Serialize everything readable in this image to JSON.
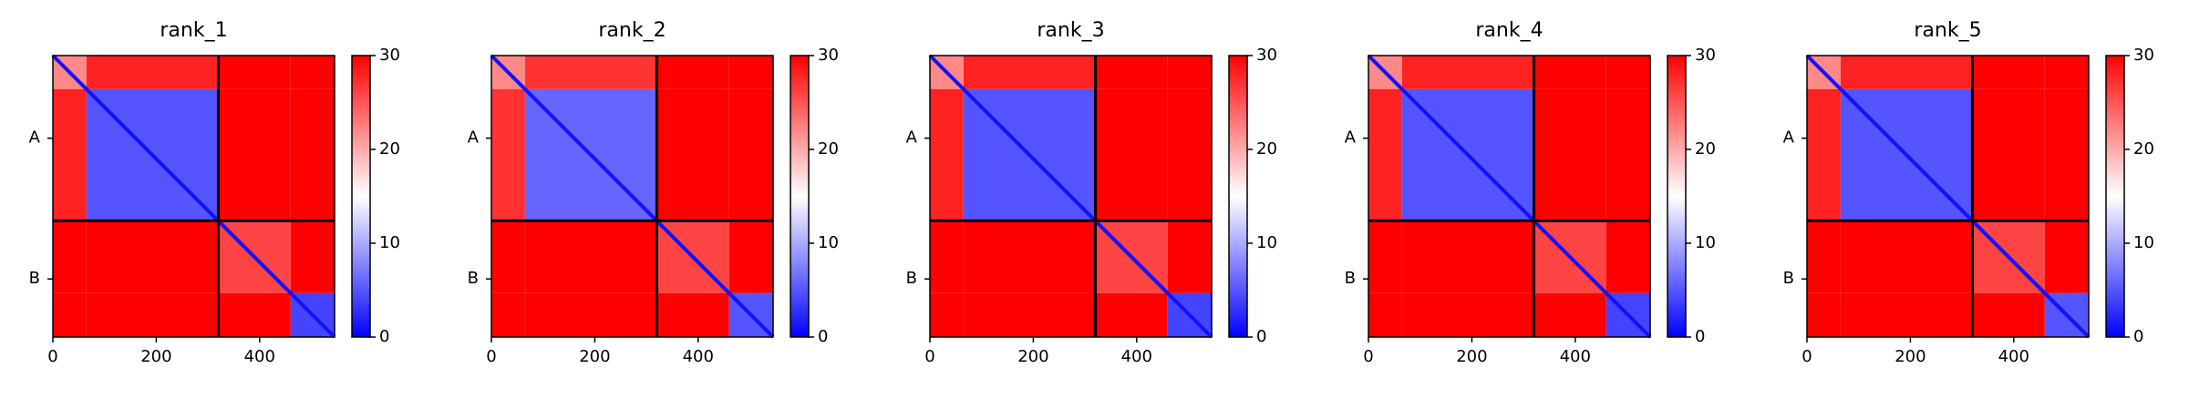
{
  "chart_data": [
    {
      "type": "heatmap",
      "title": "rank_1",
      "x_edges": [
        0,
        65,
        320,
        460,
        545
      ],
      "z": [
        [
          22,
          28,
          30,
          30
        ],
        [
          28,
          5,
          30,
          30
        ],
        [
          30,
          30,
          26,
          30
        ],
        [
          30,
          30,
          30,
          4
        ]
      ],
      "diagonal_value": 1,
      "chains": [
        {
          "label": "A",
          "start": 0,
          "end": 320
        },
        {
          "label": "B",
          "start": 320,
          "end": 545
        }
      ],
      "xlim": [
        0,
        545
      ],
      "ylim": [
        545,
        0
      ],
      "xticks": [
        0,
        200,
        400
      ],
      "clim": [
        0,
        30
      ],
      "cticks": [
        0,
        10,
        20,
        30
      ],
      "colormap": [
        "#0000ff",
        "#ffffff",
        "#ff0000"
      ]
    },
    {
      "type": "heatmap",
      "title": "rank_2",
      "x_edges": [
        0,
        65,
        320,
        460,
        545
      ],
      "z": [
        [
          22,
          27,
          30,
          30
        ],
        [
          27,
          6,
          30,
          30
        ],
        [
          30,
          30,
          26,
          30
        ],
        [
          30,
          30,
          30,
          5
        ]
      ],
      "diagonal_value": 1,
      "chains": [
        {
          "label": "A",
          "start": 0,
          "end": 320
        },
        {
          "label": "B",
          "start": 320,
          "end": 545
        }
      ],
      "xlim": [
        0,
        545
      ],
      "ylim": [
        545,
        0
      ],
      "xticks": [
        0,
        200,
        400
      ],
      "clim": [
        0,
        30
      ],
      "cticks": [
        0,
        10,
        20,
        30
      ],
      "colormap": [
        "#0000ff",
        "#ffffff",
        "#ff0000"
      ]
    },
    {
      "type": "heatmap",
      "title": "rank_3",
      "x_edges": [
        0,
        65,
        320,
        460,
        545
      ],
      "z": [
        [
          22,
          28,
          30,
          30
        ],
        [
          28,
          5,
          30,
          30
        ],
        [
          30,
          30,
          26,
          30
        ],
        [
          30,
          30,
          30,
          4
        ]
      ],
      "diagonal_value": 1,
      "chains": [
        {
          "label": "A",
          "start": 0,
          "end": 320
        },
        {
          "label": "B",
          "start": 320,
          "end": 545
        }
      ],
      "xlim": [
        0,
        545
      ],
      "ylim": [
        545,
        0
      ],
      "xticks": [
        0,
        200,
        400
      ],
      "clim": [
        0,
        30
      ],
      "cticks": [
        0,
        10,
        20,
        30
      ],
      "colormap": [
        "#0000ff",
        "#ffffff",
        "#ff0000"
      ]
    },
    {
      "type": "heatmap",
      "title": "rank_4",
      "x_edges": [
        0,
        65,
        320,
        460,
        545
      ],
      "z": [
        [
          22,
          28,
          30,
          30
        ],
        [
          28,
          5,
          30,
          30
        ],
        [
          30,
          30,
          26,
          30
        ],
        [
          30,
          30,
          30,
          4
        ]
      ],
      "diagonal_value": 1,
      "chains": [
        {
          "label": "A",
          "start": 0,
          "end": 320
        },
        {
          "label": "B",
          "start": 320,
          "end": 545
        }
      ],
      "xlim": [
        0,
        545
      ],
      "ylim": [
        545,
        0
      ],
      "xticks": [
        0,
        200,
        400
      ],
      "clim": [
        0,
        30
      ],
      "cticks": [
        0,
        10,
        20,
        30
      ],
      "colormap": [
        "#0000ff",
        "#ffffff",
        "#ff0000"
      ]
    },
    {
      "type": "heatmap",
      "title": "rank_5",
      "x_edges": [
        0,
        65,
        320,
        460,
        545
      ],
      "z": [
        [
          22,
          28,
          30,
          30
        ],
        [
          28,
          5,
          30,
          30
        ],
        [
          30,
          30,
          26,
          30
        ],
        [
          30,
          30,
          30,
          5
        ]
      ],
      "diagonal_value": 1,
      "chains": [
        {
          "label": "A",
          "start": 0,
          "end": 320
        },
        {
          "label": "B",
          "start": 320,
          "end": 545
        }
      ],
      "xlim": [
        0,
        545
      ],
      "ylim": [
        545,
        0
      ],
      "xticks": [
        0,
        200,
        400
      ],
      "clim": [
        0,
        30
      ],
      "cticks": [
        0,
        10,
        20,
        30
      ],
      "colormap": [
        "#0000ff",
        "#ffffff",
        "#ff0000"
      ]
    }
  ]
}
